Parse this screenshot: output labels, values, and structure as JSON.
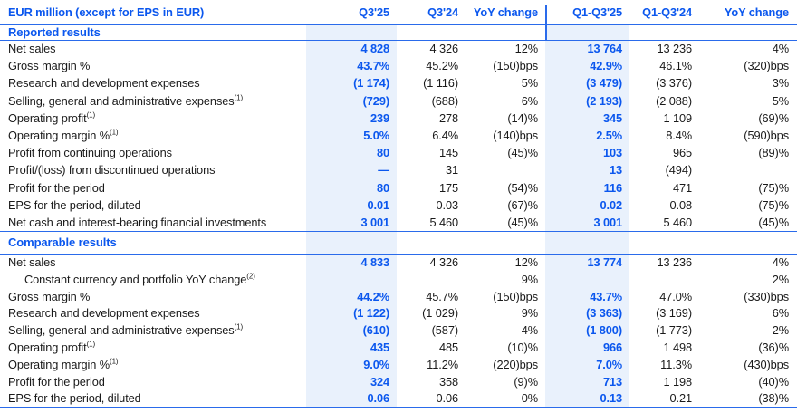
{
  "colors": {
    "accent_blue": "#0B57EE",
    "line_blue": "#2A6BEB",
    "highlight_bg": "#E9F1FC",
    "text_dark": "#1A1A1A"
  },
  "table": {
    "unit_header": "EUR million (except for EPS in EUR)",
    "columns": [
      "Q3'25",
      "Q3'24",
      "YoY change",
      "Q1-Q3'25",
      "Q1-Q3'24",
      "YoY change"
    ],
    "sections": [
      {
        "title": "Reported results",
        "rows": [
          {
            "label": "Net sales",
            "sup": "",
            "indent": false,
            "values": [
              "4 828",
              "4 326",
              "12%",
              "13 764",
              "13 236",
              "4%"
            ]
          },
          {
            "label": "Gross margin %",
            "sup": "",
            "indent": false,
            "values": [
              "43.7%",
              "45.2%",
              "(150)bps",
              "42.9%",
              "46.1%",
              "(320)bps"
            ]
          },
          {
            "label": "Research and development expenses",
            "sup": "",
            "indent": false,
            "values": [
              "(1 174)",
              "(1 116)",
              "5%",
              "(3 479)",
              "(3 376)",
              "3%"
            ]
          },
          {
            "label": "Selling, general and administrative expenses",
            "sup": "(1)",
            "indent": false,
            "values": [
              "(729)",
              "(688)",
              "6%",
              "(2 193)",
              "(2 088)",
              "5%"
            ]
          },
          {
            "label": "Operating profit",
            "sup": "(1)",
            "indent": false,
            "values": [
              "239",
              "278",
              "(14)%",
              "345",
              "1 109",
              "(69)%"
            ]
          },
          {
            "label": "Operating margin %",
            "sup": "(1)",
            "indent": false,
            "values": [
              "5.0%",
              "6.4%",
              "(140)bps",
              "2.5%",
              "8.4%",
              "(590)bps"
            ]
          },
          {
            "label": "Profit from continuing operations",
            "sup": "",
            "indent": false,
            "values": [
              "80",
              "145",
              "(45)%",
              "103",
              "965",
              "(89)%"
            ]
          },
          {
            "label": "Profit/(loss) from discontinued operations",
            "sup": "",
            "indent": false,
            "values": [
              "—",
              "31",
              "",
              "13",
              "(494)",
              ""
            ]
          },
          {
            "label": "Profit for the period",
            "sup": "",
            "indent": false,
            "values": [
              "80",
              "175",
              "(54)%",
              "116",
              "471",
              "(75)%"
            ]
          },
          {
            "label": "EPS for the period, diluted",
            "sup": "",
            "indent": false,
            "values": [
              "0.01",
              "0.03",
              "(67)%",
              "0.02",
              "0.08",
              "(75)%"
            ]
          },
          {
            "label": "Net cash and interest-bearing financial investments",
            "sup": "",
            "indent": false,
            "values": [
              "3 001",
              "5 460",
              "(45)%",
              "3 001",
              "5 460",
              "(45)%"
            ]
          }
        ]
      },
      {
        "title": "Comparable results",
        "rows": [
          {
            "label": "Net sales",
            "sup": "",
            "indent": false,
            "values": [
              "4 833",
              "4 326",
              "12%",
              "13 774",
              "13 236",
              "4%"
            ]
          },
          {
            "label": "Constant currency and portfolio YoY change",
            "sup": "(2)",
            "indent": true,
            "values": [
              "",
              "",
              "9%",
              "",
              "",
              "2%"
            ]
          },
          {
            "label": "Gross margin %",
            "sup": "",
            "indent": false,
            "values": [
              "44.2%",
              "45.7%",
              "(150)bps",
              "43.7%",
              "47.0%",
              "(330)bps"
            ]
          },
          {
            "label": "Research and development expenses",
            "sup": "",
            "indent": false,
            "values": [
              "(1 122)",
              "(1 029)",
              "9%",
              "(3 363)",
              "(3 169)",
              "6%"
            ]
          },
          {
            "label": "Selling, general and administrative expenses",
            "sup": "(1)",
            "indent": false,
            "values": [
              "(610)",
              "(587)",
              "4%",
              "(1 800)",
              "(1 773)",
              "2%"
            ]
          },
          {
            "label": "Operating profit",
            "sup": "(1)",
            "indent": false,
            "values": [
              "435",
              "485",
              "(10)%",
              "966",
              "1 498",
              "(36)%"
            ]
          },
          {
            "label": "Operating margin %",
            "sup": "(1)",
            "indent": false,
            "values": [
              "9.0%",
              "11.2%",
              "(220)bps",
              "7.0%",
              "11.3%",
              "(430)bps"
            ]
          },
          {
            "label": "Profit for the period",
            "sup": "",
            "indent": false,
            "values": [
              "324",
              "358",
              "(9)%",
              "713",
              "1 198",
              "(40)%"
            ]
          },
          {
            "label": "EPS for the period, diluted",
            "sup": "",
            "indent": false,
            "values": [
              "0.06",
              "0.06",
              "0%",
              "0.13",
              "0.21",
              "(38)%"
            ]
          }
        ]
      }
    ]
  }
}
